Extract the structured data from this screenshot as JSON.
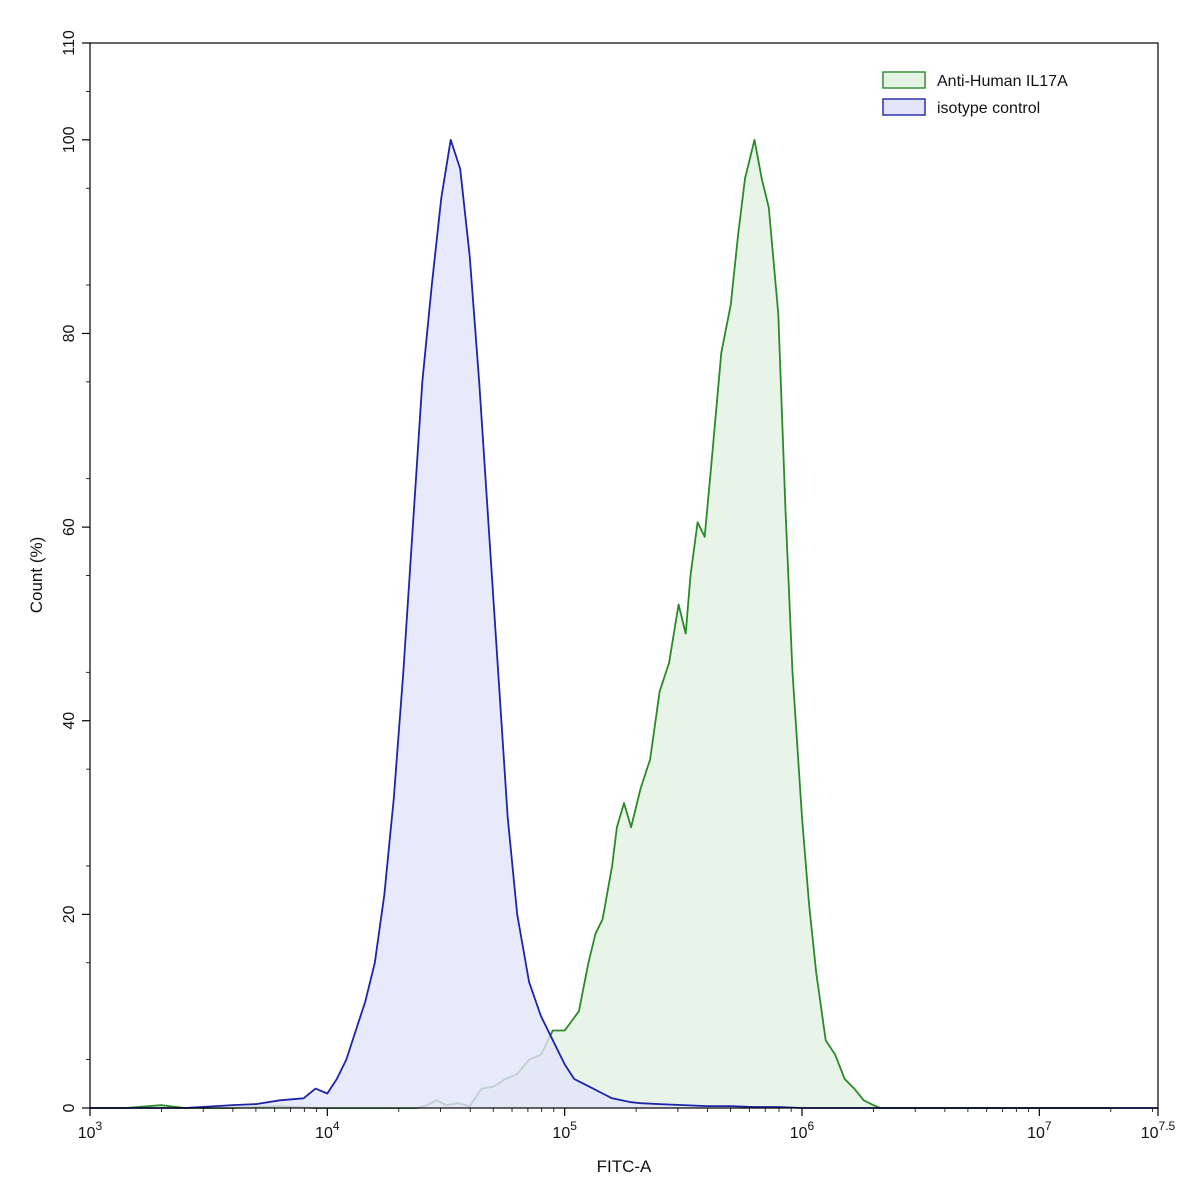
{
  "chart_data": {
    "type": "area",
    "title": "",
    "xlabel": "FITC-A",
    "ylabel": "Count  (%)",
    "xscale": "log",
    "xlim_log10": [
      3,
      7.5
    ],
    "ylim": [
      0,
      110
    ],
    "x_ticks": [
      {
        "log10": 3,
        "base": "10",
        "exp": "3"
      },
      {
        "log10": 4,
        "base": "10",
        "exp": "4"
      },
      {
        "log10": 5,
        "base": "10",
        "exp": "5"
      },
      {
        "log10": 6,
        "base": "10",
        "exp": "6"
      },
      {
        "log10": 7,
        "base": "10",
        "exp": "7"
      },
      {
        "log10": 7.5,
        "base": "10",
        "exp": "7.5"
      }
    ],
    "y_ticks": [
      "0",
      "20",
      "40",
      "60",
      "80",
      "100",
      "110"
    ],
    "grid": false,
    "legend": {
      "position": "top-right",
      "entries": [
        {
          "label": "Anti-Human IL17A",
          "stroke": "#2a8a2a",
          "fill": "#e4f3e4"
        },
        {
          "label": "isotype control",
          "stroke": "#1c24a8",
          "fill": "#e2e4fa"
        }
      ]
    },
    "series": [
      {
        "name": "Anti-Human IL17A",
        "stroke": "#2a8a2a",
        "fill": "#e4f3e4",
        "x_log10": [
          3.0,
          3.15,
          3.3,
          3.4,
          3.5,
          3.6,
          3.8,
          3.95,
          4.1,
          4.2,
          4.3,
          4.38,
          4.42,
          4.46,
          4.5,
          4.55,
          4.6,
          4.65,
          4.7,
          4.75,
          4.8,
          4.85,
          4.9,
          4.95,
          5.0,
          5.03,
          5.06,
          5.1,
          5.13,
          5.16,
          5.2,
          5.22,
          5.25,
          5.28,
          5.32,
          5.36,
          5.4,
          5.44,
          5.48,
          5.51,
          5.53,
          5.56,
          5.59,
          5.62,
          5.66,
          5.7,
          5.73,
          5.76,
          5.8,
          5.83,
          5.86,
          5.9,
          5.93,
          5.96,
          6.0,
          6.03,
          6.06,
          6.1,
          6.14,
          6.18,
          6.22,
          6.26,
          6.3,
          6.33,
          6.36,
          6.39,
          6.42,
          6.45,
          6.5,
          6.55,
          6.6,
          6.65,
          6.7,
          6.75,
          6.8,
          6.85,
          6.9,
          6.95,
          7.0,
          7.05,
          7.1,
          7.2,
          7.3
        ],
        "y": [
          0,
          0,
          0.3,
          0,
          0,
          0,
          0.2,
          0,
          0,
          0,
          0,
          0,
          0.3,
          0.8,
          0.3,
          0.5,
          0.2,
          2.0,
          2.2,
          3.0,
          3.5,
          5.0,
          5.5,
          8.0,
          8.0,
          9.0,
          10.0,
          15.0,
          18.0,
          19.5,
          25.0,
          29.0,
          31.5,
          29.0,
          33.0,
          36.0,
          43.0,
          46.0,
          52.0,
          49.0,
          55.0,
          60.5,
          59.0,
          67.0,
          78.0,
          83.0,
          90.0,
          96.0,
          100,
          96.0,
          93.0,
          82.0,
          62.0,
          45.0,
          30.0,
          21.0,
          14.0,
          7.0,
          5.5,
          3.0,
          2.0,
          0.8,
          0.3,
          0,
          0,
          0,
          0,
          0,
          0,
          0,
          0,
          0,
          0,
          0,
          0,
          0,
          0,
          0,
          0,
          0,
          0,
          0,
          0
        ]
      },
      {
        "name": "isotype control",
        "stroke": "#1c24a8",
        "fill": "#e2e4fa",
        "x_log10": [
          3.0,
          3.2,
          3.4,
          3.6,
          3.7,
          3.8,
          3.9,
          3.95,
          4.0,
          4.04,
          4.08,
          4.12,
          4.16,
          4.2,
          4.24,
          4.28,
          4.32,
          4.36,
          4.4,
          4.44,
          4.48,
          4.52,
          4.56,
          4.6,
          4.64,
          4.68,
          4.72,
          4.76,
          4.8,
          4.85,
          4.9,
          4.95,
          5.0,
          5.04,
          5.08,
          5.12,
          5.16,
          5.2,
          5.24,
          5.28,
          5.32,
          5.4,
          5.5,
          5.6,
          5.7,
          5.8,
          5.9,
          6.0,
          6.5,
          7.0,
          7.5
        ],
        "y": [
          0,
          0,
          0,
          0.3,
          0.4,
          0.8,
          1.0,
          2.0,
          1.5,
          3.0,
          5.0,
          8.0,
          11.0,
          15.0,
          22.0,
          32.0,
          45.0,
          60.0,
          75.0,
          85.0,
          94.0,
          100,
          97.0,
          88.0,
          75.0,
          60.0,
          45.0,
          30.0,
          20.0,
          13.0,
          9.5,
          7.0,
          4.5,
          3.0,
          2.5,
          2.0,
          1.5,
          1.0,
          0.8,
          0.6,
          0.5,
          0.4,
          0.3,
          0.2,
          0.2,
          0.1,
          0.1,
          0,
          0,
          0,
          0
        ]
      }
    ]
  }
}
